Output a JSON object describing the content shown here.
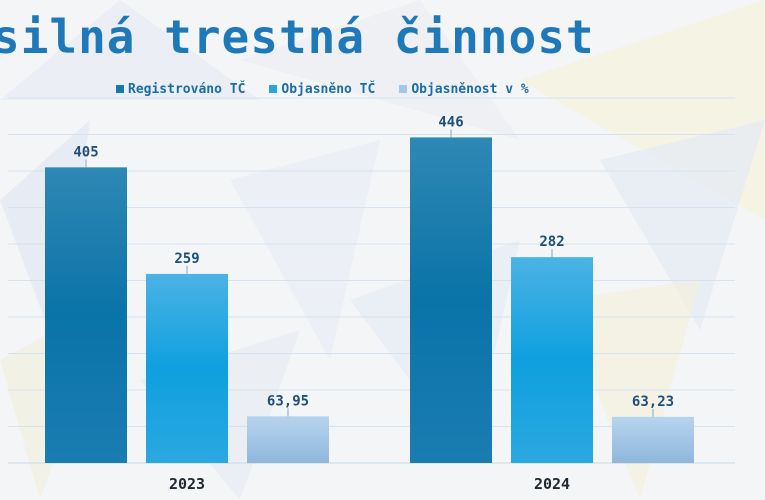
{
  "chart_data": {
    "type": "bar",
    "title": "silná trestná činnost",
    "categories": [
      "2023",
      "2024"
    ],
    "series": [
      {
        "name": "Registrováno TČ",
        "values": [
          405,
          446
        ],
        "labels": [
          "405",
          "446"
        ],
        "color": "#1479a8"
      },
      {
        "name": "Objasněno TČ",
        "values": [
          259,
          282
        ],
        "labels": [
          "259",
          "282"
        ],
        "color": "#25a6de"
      },
      {
        "name": "Objasněnost v %",
        "values": [
          63.95,
          63.23
        ],
        "labels": [
          "63,95",
          "63,23"
        ],
        "color": "#a3c7e6"
      }
    ],
    "ylim": [
      0,
      500
    ],
    "grid": true,
    "legend": "top"
  }
}
